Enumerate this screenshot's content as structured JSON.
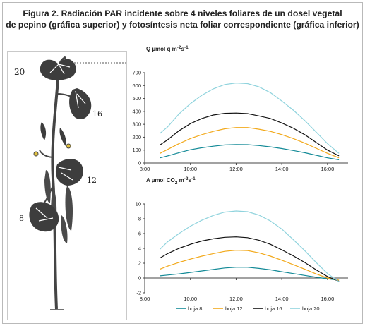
{
  "figure": {
    "title_line1": "Figura 2. Radiación PAR incidente sobre 4 niveles foliares de un dosel vegetal",
    "title_line2": "de pepino (gráfica superior) y fotosíntesis neta foliar correspondiente (gráfica inferior)"
  },
  "plant": {
    "leaf_labels": [
      "20",
      "16",
      "12",
      "8"
    ]
  },
  "colors": {
    "hoja 8": "#138a97",
    "hoja 12": "#f2a91b",
    "hoja 16": "#111111",
    "hoja 20": "#8fd3dd"
  },
  "chart_data": [
    {
      "type": "line",
      "ylabel_parts": [
        "Q µmol q m",
        "-2",
        "s",
        "-1"
      ],
      "x_ticks": [
        "8:00",
        "10:00",
        "12:00",
        "14:00",
        "16:00"
      ],
      "x_hours": [
        8,
        10,
        12,
        14,
        16
      ],
      "xlim": [
        8,
        16.9
      ],
      "ylim": [
        0,
        700
      ],
      "y_ticks": [
        0,
        100,
        200,
        300,
        400,
        500,
        600,
        700
      ],
      "x": [
        8.67,
        9,
        9.5,
        10,
        10.5,
        11,
        11.5,
        12,
        12.5,
        13,
        13.5,
        14,
        14.5,
        15,
        15.5,
        16,
        16.5
      ],
      "series": [
        {
          "name": "hoja 8",
          "values": [
            40,
            55,
            80,
            103,
            118,
            130,
            140,
            143,
            142,
            135,
            125,
            112,
            97,
            80,
            60,
            40,
            25
          ]
        },
        {
          "name": "hoja 12",
          "values": [
            75,
            105,
            150,
            190,
            220,
            245,
            265,
            275,
            275,
            262,
            245,
            220,
            190,
            155,
            115,
            75,
            40
          ]
        },
        {
          "name": "hoja 16",
          "values": [
            140,
            180,
            250,
            305,
            345,
            372,
            385,
            387,
            383,
            365,
            345,
            310,
            270,
            220,
            160,
            100,
            55
          ]
        },
        {
          "name": "hoja 20",
          "values": [
            230,
            280,
            380,
            460,
            525,
            575,
            608,
            620,
            615,
            590,
            545,
            480,
            410,
            330,
            240,
            150,
            75
          ]
        }
      ]
    },
    {
      "type": "line",
      "ylabel_parts": [
        "A µmol CO",
        "2",
        " m",
        "-2",
        "s",
        "-1"
      ],
      "x_ticks": [
        "8:00",
        "10:00",
        "12:00",
        "14:00",
        "16:00"
      ],
      "x_hours": [
        8,
        10,
        12,
        14,
        16
      ],
      "xlim": [
        8,
        16.9
      ],
      "ylim": [
        -2,
        10
      ],
      "y_ticks": [
        -2,
        0,
        2,
        4,
        6,
        8,
        10
      ],
      "x": [
        8.67,
        9,
        9.5,
        10,
        10.5,
        11,
        11.5,
        12,
        12.5,
        13,
        13.5,
        14,
        14.5,
        15,
        15.5,
        16,
        16.5
      ],
      "series": [
        {
          "name": "hoja 8",
          "values": [
            0.3,
            0.4,
            0.55,
            0.75,
            0.95,
            1.15,
            1.35,
            1.45,
            1.45,
            1.3,
            1.1,
            0.85,
            0.6,
            0.35,
            0.1,
            -0.1,
            -0.3
          ]
        },
        {
          "name": "hoja 12",
          "values": [
            1.2,
            1.6,
            2.1,
            2.55,
            2.95,
            3.3,
            3.6,
            3.75,
            3.7,
            3.4,
            2.95,
            2.4,
            1.8,
            1.2,
            0.55,
            0.0,
            -0.3
          ]
        },
        {
          "name": "hoja 16",
          "values": [
            2.7,
            3.3,
            4.0,
            4.55,
            5.0,
            5.3,
            5.5,
            5.55,
            5.45,
            5.1,
            4.55,
            3.8,
            3.0,
            2.1,
            1.1,
            0.2,
            -0.45
          ]
        },
        {
          "name": "hoja 20",
          "values": [
            3.9,
            4.9,
            6.0,
            7.0,
            7.8,
            8.45,
            8.9,
            9.05,
            8.95,
            8.5,
            7.7,
            6.6,
            5.2,
            3.7,
            2.1,
            0.6,
            -0.5
          ]
        }
      ]
    }
  ],
  "legend": [
    "hoja 8",
    "hoja 12",
    "hoja 16",
    "hoja 20"
  ]
}
